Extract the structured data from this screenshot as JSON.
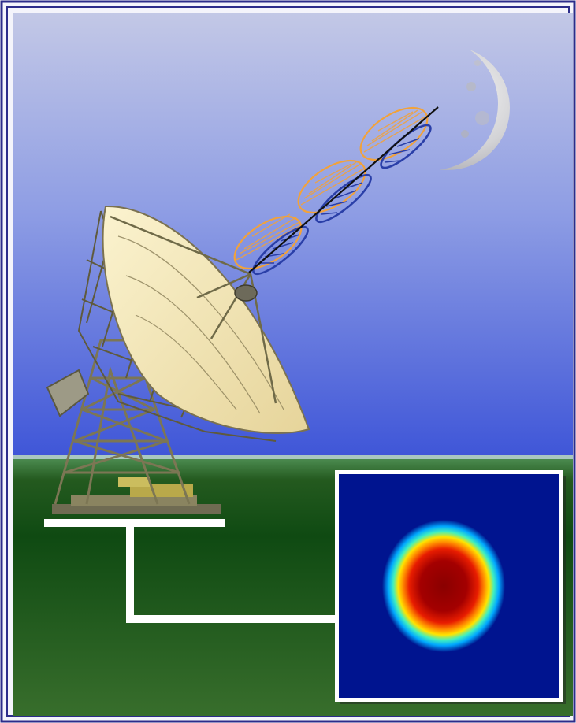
{
  "scene": {
    "subject": "radio-telescope",
    "target": "moon",
    "signal": "polarized-wave",
    "output": "heatmap-image"
  },
  "colors": {
    "frame_outer": "#2c2c8a",
    "sky_top": "#c3c8e6",
    "sky_bottom": "#3f56d8",
    "horizon": "#a9c7c0",
    "ground_top": "#2e6a2a",
    "ground_bottom": "#356e2a",
    "wave_orange": "#f2a23a",
    "wave_blue": "#2a3fa8",
    "connector": "#ffffff",
    "heat_background": "#00118f",
    "heat_core": "#8e0000"
  }
}
